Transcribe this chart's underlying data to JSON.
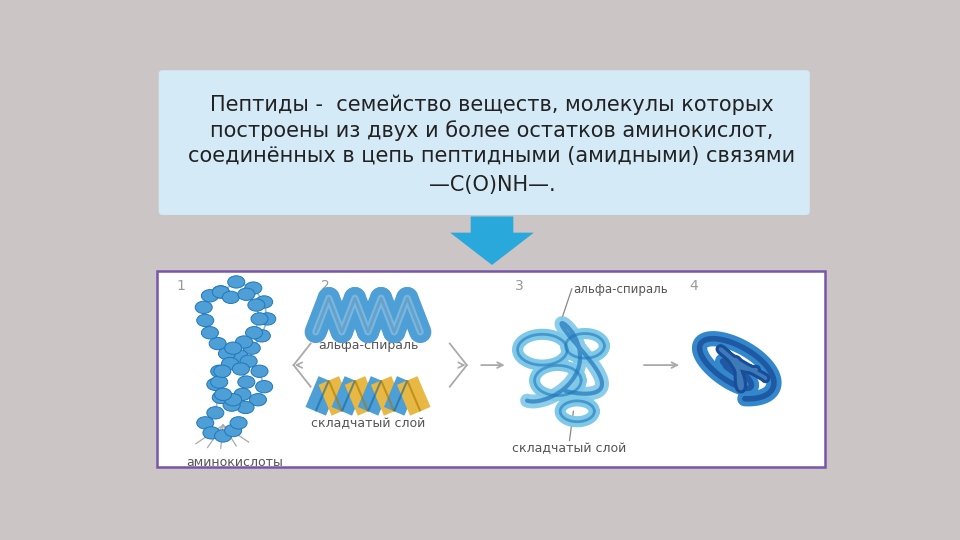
{
  "background_color": "#ccc5c5",
  "text_box_color": "#d4eaf7",
  "text_box_border": "#b0cfe0",
  "title_line1": "Пептиды -  семейство веществ, молекулы которых",
  "title_line2": "построены из двух и более остатков аминокислот,",
  "title_line3": "соединённых в цепь пептидными (амидными) связями",
  "title_line4": "—C(O)NH—.",
  "title_fontsize": 15,
  "arrow_color": "#29a8dc",
  "diagram_border": "#7755aa",
  "numbers": [
    "1",
    "2",
    "3",
    "4"
  ],
  "label_aminokisloty": "аминокислоты",
  "label_skladchatyy1": "складчатый слой",
  "label_alfa_spiral_mid": "альфа-спираль",
  "label_alfa_spiral_top": "альфа-спираль",
  "label_skladchatyy2": "складчатый слой",
  "bead_color": "#4d9fd6",
  "bead_edge": "#2277bb",
  "helix_color": "#4d9fd6",
  "helix_dark": "#1a6699",
  "sheet_blue": "#4d9fd6",
  "sheet_yellow": "#e8b844",
  "tertiary_light": "#7ec8e8",
  "tertiary_dark": "#2277bb",
  "quaternary_mid": "#3388cc",
  "quaternary_dark": "#1a4d99"
}
